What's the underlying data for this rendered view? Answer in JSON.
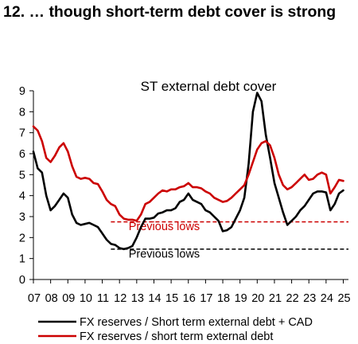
{
  "heading": "12. … though short-term debt cover is strong",
  "chart_data": {
    "type": "line",
    "title": "ST external debt cover",
    "xlabel": "",
    "ylabel": "",
    "ylim": [
      0,
      9
    ],
    "xlim": [
      2007,
      2025.3
    ],
    "yticks": [
      0,
      1,
      2,
      3,
      4,
      5,
      6,
      7,
      8,
      9
    ],
    "xtick_labels": [
      "07",
      "08",
      "09",
      "10",
      "11",
      "12",
      "13",
      "14",
      "15",
      "16",
      "17",
      "18",
      "19",
      "20",
      "21",
      "22",
      "23",
      "24",
      "25"
    ],
    "grid": false,
    "legend_position": "bottom",
    "colors": {
      "black_series": "#000000",
      "red_series": "#cc0000"
    },
    "series": [
      {
        "name": "FX reserves / Short term external debt + CAD",
        "color": "#000000",
        "x": [
          2007.0,
          2007.25,
          2007.5,
          2007.75,
          2008.0,
          2008.25,
          2008.5,
          2008.75,
          2009.0,
          2009.25,
          2009.5,
          2009.75,
          2010.0,
          2010.25,
          2010.5,
          2010.75,
          2011.0,
          2011.25,
          2011.5,
          2011.75,
          2012.0,
          2012.25,
          2012.5,
          2012.75,
          2013.0,
          2013.25,
          2013.5,
          2013.75,
          2014.0,
          2014.25,
          2014.5,
          2014.75,
          2015.0,
          2015.25,
          2015.5,
          2015.75,
          2016.0,
          2016.25,
          2016.5,
          2016.75,
          2017.0,
          2017.25,
          2017.5,
          2017.75,
          2018.0,
          2018.25,
          2018.5,
          2018.75,
          2019.0,
          2019.25,
          2019.5,
          2019.75,
          2020.0,
          2020.25,
          2020.5,
          2020.75,
          2021.0,
          2021.25,
          2021.5,
          2021.75,
          2022.0,
          2022.25,
          2022.5,
          2022.75,
          2023.0,
          2023.25,
          2023.5,
          2023.75,
          2024.0,
          2024.25,
          2024.5,
          2024.75,
          2025.0
        ],
        "values": [
          6.1,
          5.3,
          5.1,
          4.0,
          3.3,
          3.5,
          3.8,
          4.1,
          3.9,
          3.1,
          2.7,
          2.6,
          2.65,
          2.7,
          2.6,
          2.5,
          2.2,
          1.9,
          1.7,
          1.65,
          1.5,
          1.45,
          1.5,
          1.6,
          2.0,
          2.5,
          2.9,
          2.9,
          2.95,
          3.15,
          3.2,
          3.3,
          3.3,
          3.4,
          3.7,
          3.8,
          4.1,
          3.8,
          3.7,
          3.6,
          3.3,
          3.2,
          3.0,
          2.8,
          2.3,
          2.35,
          2.5,
          2.9,
          3.3,
          3.9,
          5.5,
          8.0,
          8.9,
          8.5,
          6.9,
          5.8,
          4.6,
          3.9,
          3.2,
          2.6,
          2.8,
          3.0,
          3.3,
          3.5,
          3.8,
          4.1,
          4.2,
          4.2,
          4.15,
          3.3,
          3.6,
          4.1,
          4.25
        ]
      },
      {
        "name": "FX reserves / short term external debt",
        "color": "#cc0000",
        "x": [
          2007.0,
          2007.25,
          2007.5,
          2007.75,
          2008.0,
          2008.25,
          2008.5,
          2008.75,
          2009.0,
          2009.25,
          2009.5,
          2009.75,
          2010.0,
          2010.25,
          2010.5,
          2010.75,
          2011.0,
          2011.25,
          2011.5,
          2011.75,
          2012.0,
          2012.25,
          2012.5,
          2012.75,
          2013.0,
          2013.25,
          2013.5,
          2013.75,
          2014.0,
          2014.25,
          2014.5,
          2014.75,
          2015.0,
          2015.25,
          2015.5,
          2015.75,
          2016.0,
          2016.25,
          2016.5,
          2016.75,
          2017.0,
          2017.25,
          2017.5,
          2017.75,
          2018.0,
          2018.25,
          2018.5,
          2018.75,
          2019.0,
          2019.25,
          2019.5,
          2019.75,
          2020.0,
          2020.25,
          2020.5,
          2020.75,
          2021.0,
          2021.25,
          2021.5,
          2021.75,
          2022.0,
          2022.25,
          2022.5,
          2022.75,
          2023.0,
          2023.25,
          2023.5,
          2023.75,
          2024.0,
          2024.25,
          2024.5,
          2024.75,
          2025.0
        ],
        "values": [
          7.3,
          7.1,
          6.6,
          5.8,
          5.6,
          5.9,
          6.3,
          6.5,
          6.1,
          5.4,
          4.9,
          4.8,
          4.85,
          4.8,
          4.6,
          4.55,
          4.2,
          3.8,
          3.6,
          3.5,
          3.1,
          2.9,
          2.85,
          2.85,
          2.8,
          3.1,
          3.6,
          3.7,
          3.9,
          4.1,
          4.25,
          4.2,
          4.3,
          4.3,
          4.4,
          4.45,
          4.6,
          4.4,
          4.4,
          4.35,
          4.2,
          4.1,
          3.9,
          3.8,
          3.7,
          3.75,
          3.9,
          4.1,
          4.3,
          4.5,
          5.0,
          5.6,
          6.2,
          6.5,
          6.6,
          6.4,
          5.8,
          5.0,
          4.5,
          4.3,
          4.4,
          4.6,
          4.8,
          5.0,
          4.75,
          4.8,
          5.0,
          5.1,
          5.0,
          4.1,
          4.4,
          4.75,
          4.7
        ]
      }
    ],
    "reference_lines": [
      {
        "label": "Previous lows",
        "y": 2.75,
        "x_start": 2011.5,
        "x_end": 2025.3,
        "color": "#cc0000",
        "dashed": true,
        "label_x": 2014.6,
        "label_y": 2.35
      },
      {
        "label": "Previous lows",
        "y": 1.45,
        "x_start": 2011.5,
        "x_end": 2025.3,
        "color": "#000000",
        "dashed": true,
        "label_x": 2014.6,
        "label_y": 1.05
      }
    ]
  }
}
